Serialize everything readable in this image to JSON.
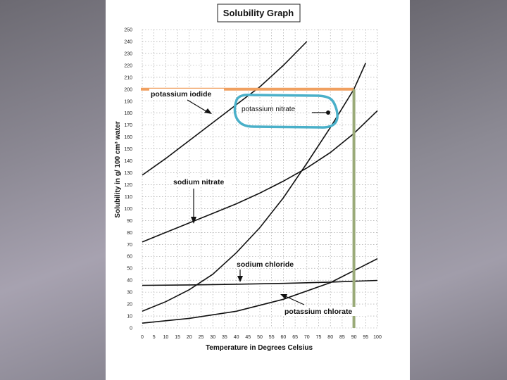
{
  "chart_data": {
    "type": "line",
    "title": "Solubility Graph",
    "xlabel": "Temperature in Degrees Celsius",
    "ylabel": "Solubility in g/ 100 cm³ water",
    "xlim": [
      0,
      100
    ],
    "ylim": [
      0,
      250
    ],
    "x_ticks": [
      0,
      5,
      10,
      15,
      20,
      25,
      30,
      35,
      40,
      45,
      50,
      55,
      60,
      65,
      70,
      75,
      80,
      85,
      90,
      95,
      100
    ],
    "y_ticks": [
      0,
      10,
      20,
      30,
      40,
      50,
      60,
      70,
      80,
      90,
      100,
      110,
      120,
      130,
      140,
      150,
      160,
      170,
      180,
      190,
      200,
      210,
      220,
      230,
      240,
      250
    ],
    "grid": true,
    "series": [
      {
        "name": "potassium iodide",
        "x": [
          0,
          10,
          20,
          30,
          40,
          50,
          60,
          70
        ],
        "y": [
          128,
          142,
          157,
          172,
          187,
          202,
          220,
          240
        ]
      },
      {
        "name": "potassium nitrate",
        "x": [
          0,
          10,
          20,
          30,
          40,
          50,
          60,
          70,
          80,
          90,
          95
        ],
        "y": [
          14,
          22,
          32,
          45,
          63,
          84,
          109,
          138,
          168,
          200,
          222
        ]
      },
      {
        "name": "sodium nitrate",
        "x": [
          0,
          10,
          20,
          30,
          40,
          50,
          60,
          70,
          80,
          90,
          100
        ],
        "y": [
          72,
          80,
          88,
          96,
          104,
          113,
          123,
          134,
          147,
          163,
          182
        ]
      },
      {
        "name": "sodium chloride",
        "x": [
          0,
          20,
          40,
          60,
          80,
          100
        ],
        "y": [
          35.7,
          36,
          36.6,
          37.3,
          38.4,
          39.8
        ]
      },
      {
        "name": "potassium chlorate",
        "x": [
          0,
          20,
          40,
          60,
          80,
          100
        ],
        "y": [
          4,
          8,
          14,
          24,
          38,
          58
        ]
      }
    ],
    "labels": {
      "potassium_iodide": "potassium iodide",
      "potassium_nitrate": "potassium nitrate",
      "sodium_nitrate": "sodium nitrate",
      "sodium_chloride": "sodium chloride",
      "potassium_chlorate": "potassium chlorate"
    },
    "annotations": {
      "highlight_y": 200,
      "highlight_x": 90,
      "horizontal_line_color": "#f0a060",
      "vertical_line_color": "#9aaa78",
      "circle_color": "#4ab0c9"
    }
  }
}
